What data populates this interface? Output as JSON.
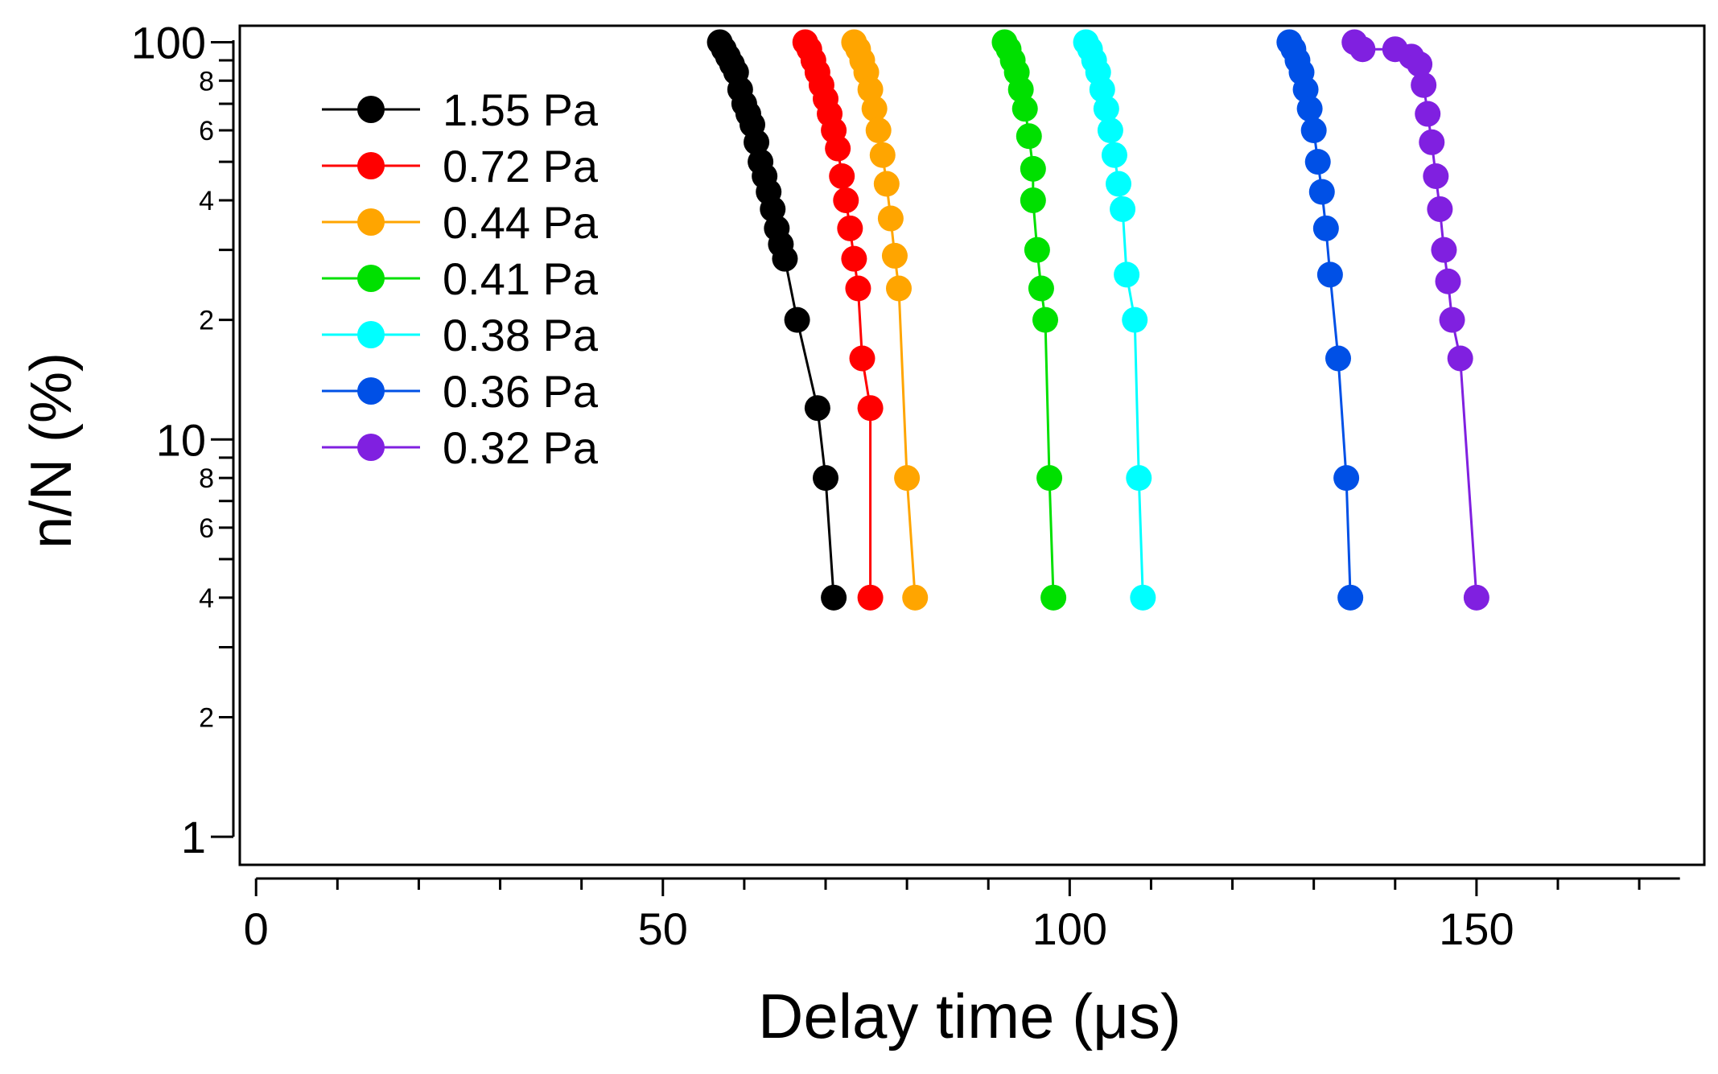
{
  "chart_data": {
    "type": "line",
    "title": "",
    "xlabel": "Delay time (μs)",
    "ylabel": "n/N (%)",
    "xlim": [
      -2,
      178
    ],
    "ylim": [
      0.85,
      110
    ],
    "yscale": "log",
    "grid": false,
    "legend_position": "top-left",
    "x_ticks": [
      {
        "value": 0,
        "label": "0"
      },
      {
        "value": 50,
        "label": "50"
      },
      {
        "value": 100,
        "label": "100"
      },
      {
        "value": 150,
        "label": "150"
      }
    ],
    "x_minor_ticks": [
      10,
      20,
      30,
      40,
      60,
      70,
      80,
      90,
      110,
      120,
      130,
      140,
      160,
      170
    ],
    "y_ticks": [
      {
        "value": 1,
        "label": "1"
      },
      {
        "value": 10,
        "label": "10"
      },
      {
        "value": 100,
        "label": "100"
      }
    ],
    "y_minor_ticks": [
      {
        "value": 2,
        "label": "2"
      },
      {
        "value": 3,
        "label": ""
      },
      {
        "value": 4,
        "label": "4"
      },
      {
        "value": 5,
        "label": ""
      },
      {
        "value": 6,
        "label": "6"
      },
      {
        "value": 7,
        "label": ""
      },
      {
        "value": 8,
        "label": "8"
      },
      {
        "value": 9,
        "label": ""
      },
      {
        "value": 20,
        "label": "2"
      },
      {
        "value": 30,
        "label": ""
      },
      {
        "value": 40,
        "label": "4"
      },
      {
        "value": 50,
        "label": ""
      },
      {
        "value": 60,
        "label": "6"
      },
      {
        "value": 70,
        "label": ""
      },
      {
        "value": 80,
        "label": "8"
      },
      {
        "value": 90,
        "label": ""
      }
    ],
    "series": [
      {
        "name": "1.55 Pa",
        "color": "#000000",
        "x": [
          57,
          57.5,
          58,
          58.5,
          59,
          59.5,
          60,
          60.5,
          61,
          61.5,
          62,
          62.5,
          63,
          63.5,
          64,
          64.5,
          65,
          66.5,
          69,
          70,
          71
        ],
        "y": [
          100,
          96,
          92,
          88,
          84,
          76,
          70,
          66,
          62,
          56,
          50,
          46,
          42,
          38,
          34,
          31,
          28.5,
          20,
          12,
          8,
          4
        ]
      },
      {
        "name": "0.72 Pa",
        "color": "#ff0000",
        "x": [
          67.5,
          68,
          68.5,
          69,
          69.5,
          70,
          70.5,
          71,
          71.5,
          72,
          72.5,
          73,
          73.5,
          74,
          74.5,
          75.5,
          75.5
        ],
        "y": [
          100,
          96,
          90,
          84,
          78,
          72,
          66,
          60,
          54,
          46,
          40,
          34,
          28.5,
          24,
          16,
          12,
          4
        ]
      },
      {
        "name": "0.44 Pa",
        "color": "#ffa500",
        "x": [
          73.5,
          74,
          74.5,
          75,
          75.5,
          76,
          76.5,
          77,
          77.5,
          78,
          78.5,
          79,
          80,
          81
        ],
        "y": [
          100,
          96,
          90,
          84,
          76,
          68,
          60,
          52,
          44,
          36,
          29,
          24,
          8,
          4
        ]
      },
      {
        "name": "0.41 Pa",
        "color": "#00e000",
        "x": [
          92,
          92.5,
          93,
          93.5,
          94,
          94.5,
          95,
          95.5,
          95.5,
          96,
          96.5,
          97,
          97.5,
          98
        ],
        "y": [
          100,
          96,
          90,
          84,
          76,
          68,
          58,
          48,
          40,
          30,
          24,
          20,
          8,
          4
        ]
      },
      {
        "name": "0.38 Pa",
        "color": "#00ffff",
        "x": [
          102,
          102.5,
          103,
          103.5,
          104,
          104.5,
          105,
          105.5,
          106,
          106.5,
          107,
          108,
          108.5,
          109
        ],
        "y": [
          100,
          96,
          90,
          84,
          76,
          68,
          60,
          52,
          44,
          38,
          26,
          20,
          8,
          4
        ]
      },
      {
        "name": "0.36 Pa",
        "color": "#0050e6",
        "x": [
          127,
          127.5,
          128,
          128.5,
          129,
          129.5,
          130,
          130.5,
          131,
          131.5,
          132,
          133,
          134,
          134.5
        ],
        "y": [
          100,
          96,
          90,
          84,
          76,
          68,
          60,
          50,
          42,
          34,
          26,
          16,
          8,
          4
        ]
      },
      {
        "name": "0.32 Pa",
        "color": "#8020e0",
        "x": [
          135,
          136,
          140,
          142,
          143,
          143.5,
          144,
          144.5,
          145,
          145.5,
          146,
          146.5,
          147,
          148,
          150
        ],
        "y": [
          100,
          96,
          96,
          92,
          88,
          78,
          66,
          56,
          46,
          38,
          30,
          25,
          20,
          16,
          4
        ]
      }
    ]
  }
}
